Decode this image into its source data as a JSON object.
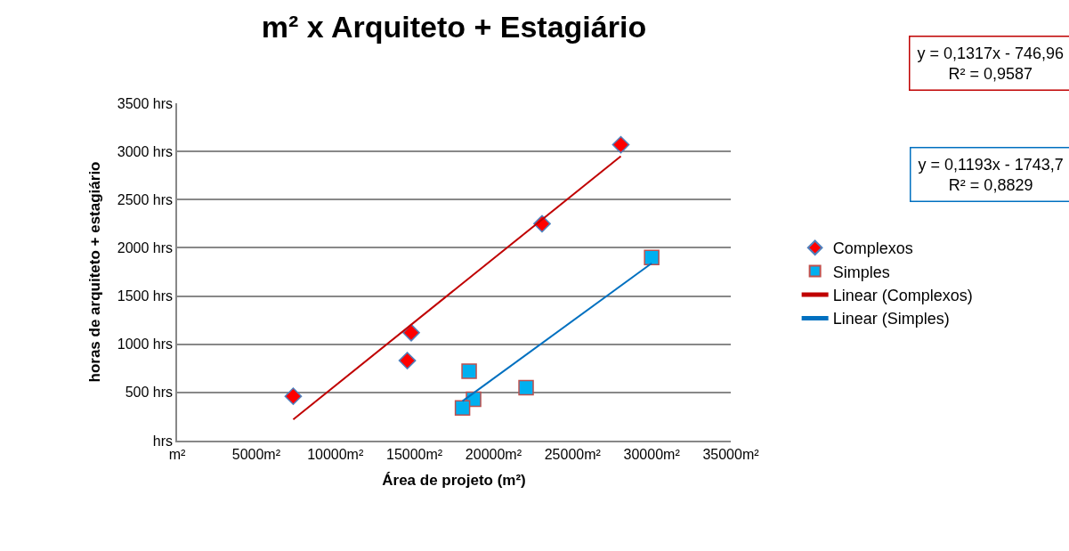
{
  "chart_data": {
    "type": "scatter",
    "title": "m² x Arquiteto + Estagiário",
    "xlabel": "Área de projeto (m²)",
    "ylabel": "horas de arquiteto + estagiário",
    "series": [
      {
        "name": "Complexos",
        "marker": "diamond",
        "color": "#ff0000",
        "x": [
          7340,
          14800,
          14550,
          23070,
          28050
        ],
        "values": [
          460,
          1120,
          830,
          2250,
          3070
        ]
      },
      {
        "name": "Simples",
        "marker": "square",
        "color": "#00b0f0",
        "x": [
          18460,
          18740,
          18040,
          22060,
          30000
        ],
        "values": [
          720,
          430,
          340,
          550,
          1900
        ]
      },
      {
        "name": "Linear (Complexos)",
        "type": "line",
        "marker": "none",
        "color": "#c00000",
        "x": [
          7340,
          28050
        ],
        "values": [
          220,
          2950
        ]
      },
      {
        "name": "Linear (Simples)",
        "type": "line",
        "marker": "none",
        "color": "#0070c0",
        "x": [
          18040,
          30000
        ],
        "values": [
          410,
          1840
        ]
      }
    ],
    "annotations": [
      "y = 0,1317x - 746,96\nR² = 0,9587",
      "y = 0,1193x - 1743,7\nR² = 0,8829"
    ],
    "xlim": [
      0,
      35000
    ],
    "ylim": [
      0,
      3500
    ],
    "xticks": [
      {
        "value": 0,
        "label": "m²"
      },
      {
        "value": 5000,
        "label": "5000m²"
      },
      {
        "value": 10000,
        "label": "10000m²"
      },
      {
        "value": 15000,
        "label": "15000m²"
      },
      {
        "value": 20000,
        "label": "20000m²"
      },
      {
        "value": 25000,
        "label": "25000m²"
      },
      {
        "value": 30000,
        "label": "30000m²"
      },
      {
        "value": 35000,
        "label": "35000m²"
      }
    ],
    "yticks": [
      {
        "value": 0,
        "label": "hrs"
      },
      {
        "value": 500,
        "label": "500 hrs"
      },
      {
        "value": 1000,
        "label": "1000 hrs"
      },
      {
        "value": 1500,
        "label": "1500 hrs"
      },
      {
        "value": 2000,
        "label": "2000 hrs"
      },
      {
        "value": 2500,
        "label": "2500 hrs"
      },
      {
        "value": 3000,
        "label": "3000 hrs"
      },
      {
        "value": 3500,
        "label": "3500 hrs"
      }
    ],
    "grid": "y",
    "legend": "right"
  }
}
